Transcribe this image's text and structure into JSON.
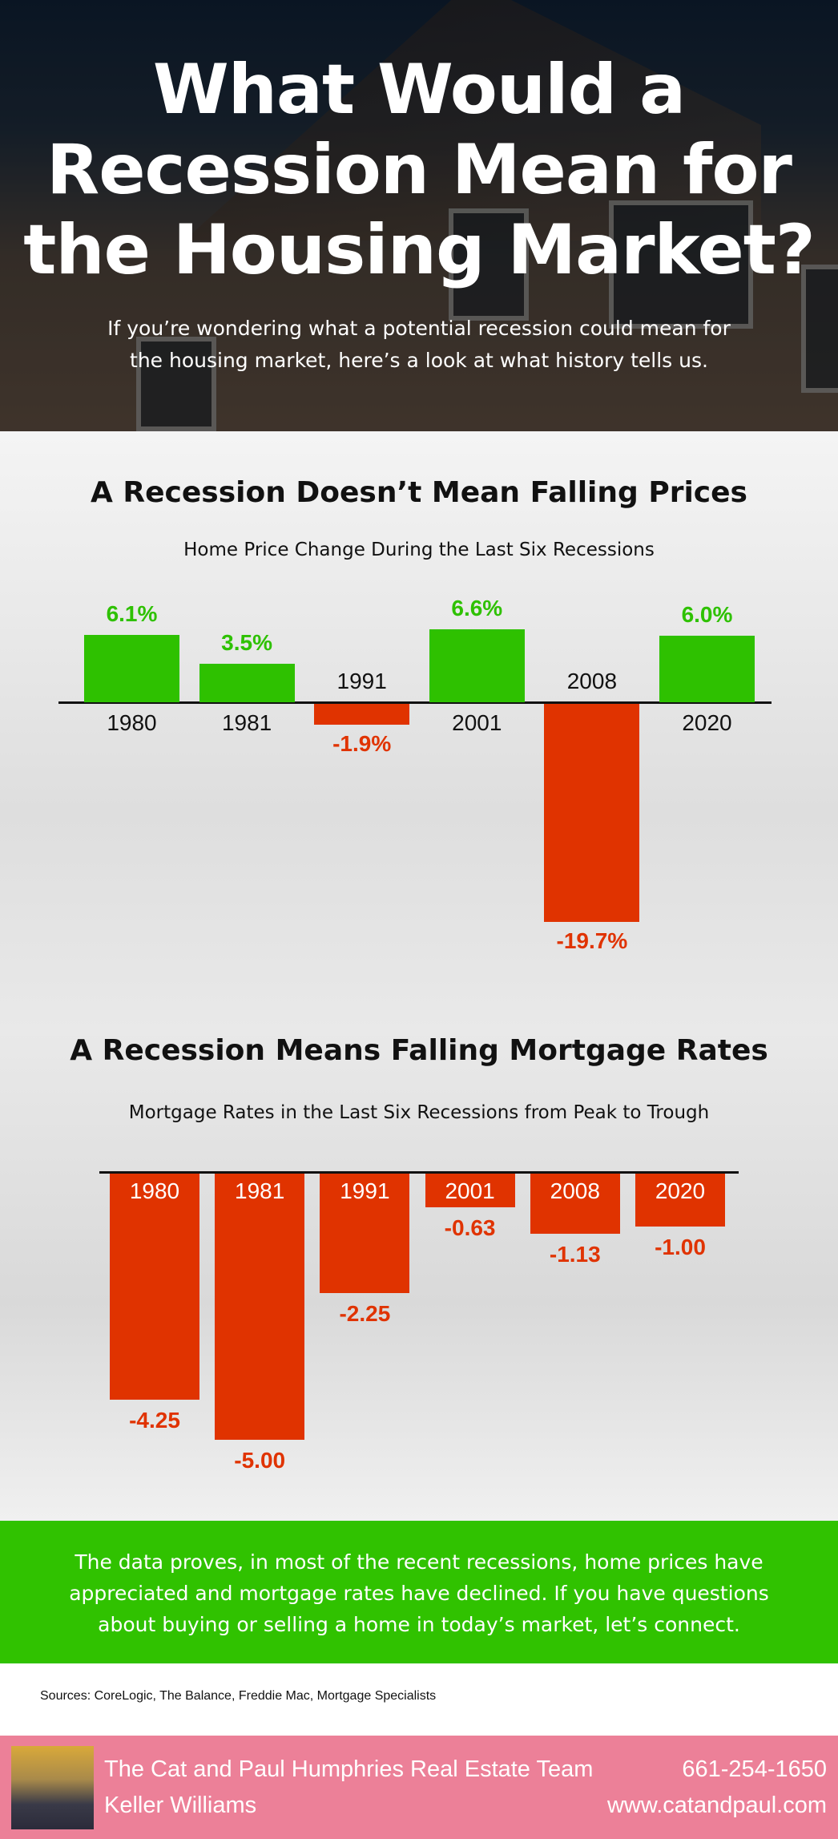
{
  "header": {
    "title_lines": [
      "What Would a",
      "Recession Mean for",
      "the Housing Market?"
    ],
    "subtitle_lines": [
      "If you’re wondering what a potential recession could mean for",
      "the housing market, here’s a look at what history tells us."
    ]
  },
  "section1": {
    "heading": "A Recession Doesn’t Mean Falling Prices",
    "caption": "Home Price Change During the Last Six Recessions"
  },
  "section2": {
    "heading": "A Recession Means Falling Mortgage Rates",
    "caption": "Mortgage Rates in the Last Six Recessions from Peak to Trough"
  },
  "chart_data": [
    {
      "type": "bar",
      "title": "Home Price Change During the Last Six Recessions",
      "categories": [
        "1980",
        "1981",
        "1991",
        "2001",
        "2008",
        "2020"
      ],
      "values": [
        6.1,
        3.5,
        -1.9,
        6.6,
        -19.7,
        6.0
      ],
      "labels": [
        "6.1%",
        "3.5%",
        "-1.9%",
        "6.6%",
        "-19.7%",
        "6.0%"
      ],
      "colors": {
        "positive": "#2ec100",
        "negative": "#e03300"
      },
      "grid": false
    },
    {
      "type": "bar",
      "title": "Mortgage Rates in the Last Six Recessions from Peak to Trough",
      "categories": [
        "1980",
        "1981",
        "1991",
        "2001",
        "2008",
        "2020"
      ],
      "values": [
        -4.25,
        -5.0,
        -2.25,
        -0.63,
        -1.13,
        -1.0
      ],
      "labels": [
        "-4.25",
        "-5.00",
        "-2.25",
        "-0.63",
        "-1.13",
        "-1.00"
      ],
      "colors": {
        "negative": "#e03300"
      },
      "grid": false
    }
  ],
  "banner": {
    "lines": [
      "The data proves, in most of the recent recessions, home prices have",
      "appreciated and mortgage rates have declined. If you have questions",
      "about buying or selling a home in today’s market, let’s connect."
    ],
    "color": "#30c200"
  },
  "sources": "Sources: CoreLogic, The Balance, Freddie Mac, Mortgage Specialists",
  "footer": {
    "team": "The Cat and Paul Humphries Real Estate Team",
    "brokerage": "Keller Williams",
    "phone": "661-254-1650",
    "website": "www.catandpaul.com",
    "color": "#ec8098"
  }
}
